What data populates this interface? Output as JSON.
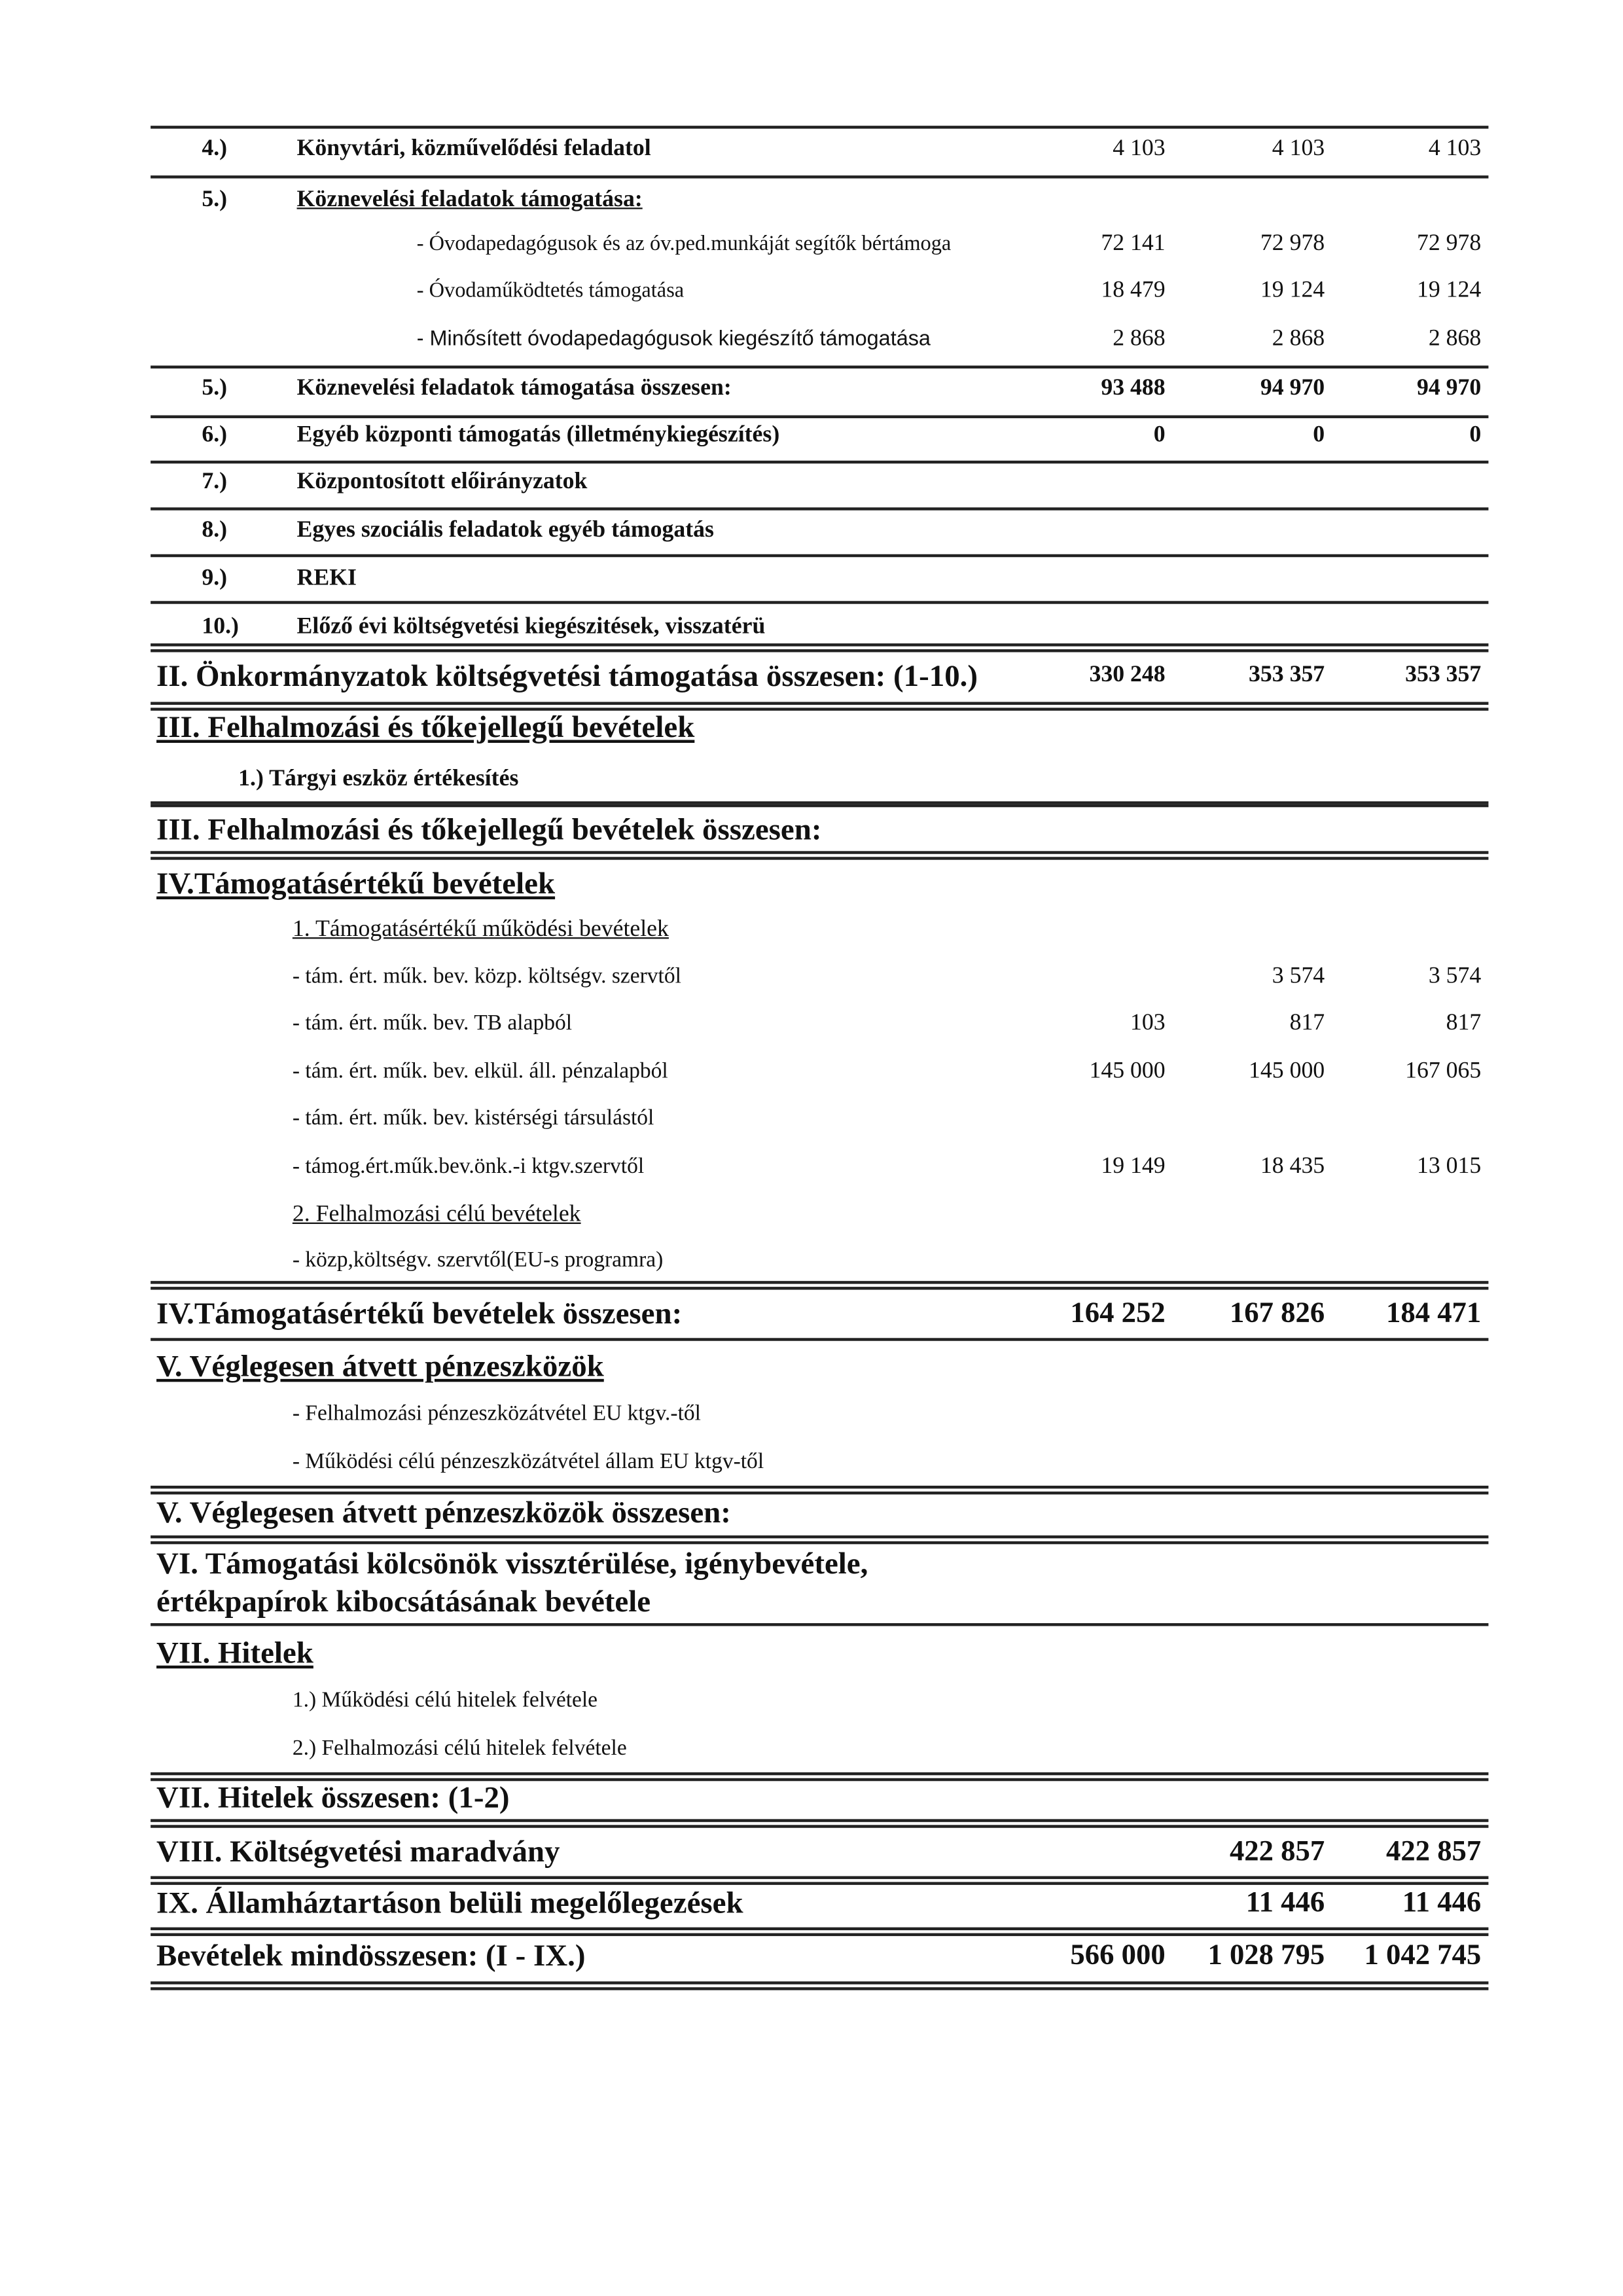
{
  "rows": [
    {
      "kind": "item",
      "num": "4.)",
      "label": "Könyvtári, közművelődési feladatol",
      "values": [
        "4 103",
        "4 103",
        "4 103"
      ]
    },
    {
      "kind": "head",
      "num": "5.)",
      "label": "Köznevelési feladatok támogatása:",
      "values": [
        "",
        "",
        ""
      ]
    },
    {
      "kind": "sub",
      "label": "- Óvodapedagógusok és az óv.ped.munkáját segítők bértámoga",
      "values": [
        "72 141",
        "72 978",
        "72 978"
      ]
    },
    {
      "kind": "sub",
      "label": "- Óvodaműködtetés támogatása",
      "values": [
        "18 479",
        "19 124",
        "19 124"
      ]
    },
    {
      "kind": "sub2",
      "label": "- Minősített óvodapedagógusok kiegészítő támogatása",
      "values": [
        "2 868",
        "2 868",
        "2 868"
      ]
    },
    {
      "kind": "item bold",
      "num": "5.)",
      "label": "Köznevelési feladatok támogatása összesen:",
      "values": [
        "93 488",
        "94 970",
        "94 970"
      ]
    },
    {
      "kind": "item bold",
      "num": "6.)",
      "label": "Egyéb központi támogatás (illetménykiegészítés)",
      "values": [
        "0",
        "0",
        "0"
      ]
    },
    {
      "kind": "item",
      "num": "7.)",
      "label": "Központosított előirányzatok",
      "values": [
        "",
        "",
        ""
      ]
    },
    {
      "kind": "item",
      "num": "8.)",
      "label": "Egyes szociális feladatok egyéb támogatás",
      "values": [
        "",
        "",
        ""
      ]
    },
    {
      "kind": "item",
      "num": "9.)",
      "label": "REKI",
      "values": [
        "",
        "",
        ""
      ]
    },
    {
      "kind": "item",
      "num": "10.)",
      "label": "Előző évi költségvetési kiegészitések, visszatérü",
      "values": [
        "",
        "",
        ""
      ]
    },
    {
      "kind": "section bold",
      "label": "II. Önkormányzatok költségvetési támogatása összesen: (1-10.)",
      "values": [
        "330 248",
        "353 357",
        "353 357"
      ]
    },
    {
      "kind": "sechead",
      "label": "III. Felhalmozási és tőkejellegű bevételek",
      "values": [
        "",
        "",
        ""
      ]
    },
    {
      "kind": "itemsub",
      "label": "1.) Tárgyi eszköz értékesítés",
      "values": [
        "",
        "",
        ""
      ]
    },
    {
      "kind": "section",
      "label": "III. Felhalmozási és tőkejellegű bevételek összesen:",
      "values": [
        "",
        "",
        ""
      ]
    },
    {
      "kind": "sechead",
      "label": "IV.Támogatásértékű bevételek",
      "values": [
        "",
        "",
        ""
      ]
    },
    {
      "kind": "subsection",
      "label": "1. Támogatásértékű működési bevételek",
      "values": [
        "",
        "",
        ""
      ]
    },
    {
      "kind": "dash",
      "label": "- tám. ért. műk. bev. közp. költségv. szervtől",
      "values": [
        "",
        "3 574",
        "3 574"
      ]
    },
    {
      "kind": "dash",
      "label": "- tám. ért. műk. bev. TB alapból",
      "values": [
        "103",
        "817",
        "817"
      ]
    },
    {
      "kind": "dash",
      "label": "- tám. ért. műk. bev. elkül. áll. pénzalapból",
      "values": [
        "145 000",
        "145 000",
        "167 065"
      ]
    },
    {
      "kind": "dash",
      "label": "- tám. ért. műk. bev. kistérségi társulástól",
      "values": [
        "",
        "",
        ""
      ]
    },
    {
      "kind": "dash",
      "label": "- támog.ért.műk.bev.önk.-i ktgv.szervtől",
      "values": [
        "19 149",
        "18 435",
        "13 015"
      ]
    },
    {
      "kind": "subsection",
      "label": "2. Felhalmozási célú bevételek",
      "values": [
        "",
        "",
        ""
      ]
    },
    {
      "kind": "dash",
      "label": "- közp,költségv. szervtől(EU-s programra)",
      "values": [
        "",
        "",
        ""
      ]
    },
    {
      "kind": "section big",
      "label": "IV.Támogatásértékű bevételek összesen:",
      "values": [
        "164 252",
        "167 826",
        "184 471"
      ]
    },
    {
      "kind": "sechead",
      "label": "V. Véglegesen átvett pénzeszközök",
      "values": [
        "",
        "",
        ""
      ]
    },
    {
      "kind": "dash",
      "label": "- Felhalmozási pénzeszközátvétel EU ktgv.-től",
      "values": [
        "",
        "",
        ""
      ]
    },
    {
      "kind": "dash",
      "label": "- Működési célú pénzeszközátvétel állam EU ktgv-től",
      "values": [
        "",
        "",
        ""
      ]
    },
    {
      "kind": "section",
      "label": "V. Véglegesen átvett pénzeszközök összesen:",
      "values": [
        "",
        "",
        ""
      ]
    },
    {
      "kind": "section",
      "label": "VI. Támogatási kölcsönök vissztérülése, igénybevétele,",
      "values": [
        "",
        "",
        ""
      ]
    },
    {
      "kind": "section",
      "label": "értékpapírok kibocsátásának bevétele",
      "values": [
        "",
        "",
        ""
      ]
    },
    {
      "kind": "sechead",
      "label": "VII. Hitelek",
      "values": [
        "",
        "",
        ""
      ]
    },
    {
      "kind": "dash",
      "label": "1.) Működési célú hitelek felvétele",
      "values": [
        "",
        "",
        ""
      ]
    },
    {
      "kind": "dash",
      "label": "2.) Felhalmozási célú hitelek felvétele",
      "values": [
        "",
        "",
        ""
      ]
    },
    {
      "kind": "section",
      "label": "VII. Hitelek összesen: (1-2)",
      "values": [
        "",
        "",
        ""
      ]
    },
    {
      "kind": "section big",
      "label": "VIII. Költségvetési maradvány",
      "values": [
        "",
        "422 857",
        "422 857"
      ]
    },
    {
      "kind": "section big",
      "label": "IX. Államháztartáson belüli megelőlegezések",
      "values": [
        "",
        "11 446",
        "11 446"
      ]
    },
    {
      "kind": "section big",
      "label": "Bevételek mindösszesen: (I - IX.)",
      "values": [
        "566 000",
        "1 028 795",
        "1 042 745"
      ]
    }
  ]
}
